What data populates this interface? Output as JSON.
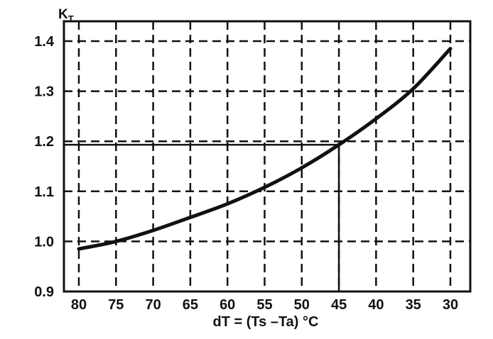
{
  "chart_data": {
    "type": "line",
    "title": "",
    "ylabel_main": "K",
    "ylabel_sub": "T",
    "xlabel": "dT = (Ts –Ta) °C",
    "x_ticks": [
      80,
      75,
      70,
      65,
      60,
      55,
      50,
      45,
      40,
      35,
      30
    ],
    "y_ticks": [
      "0.9",
      "1.0",
      "1.1",
      "1.2",
      "1.3",
      "1.4"
    ],
    "xlim": [
      80,
      30
    ],
    "ylim": [
      0.9,
      1.4
    ],
    "x_reversed": true,
    "grid": "dashed",
    "series": [
      {
        "x": [
          80,
          75,
          70,
          65,
          60,
          55,
          50,
          45,
          40,
          35,
          30
        ],
        "y": [
          0.985,
          1.0,
          1.022,
          1.048,
          1.075,
          1.108,
          1.147,
          1.193,
          1.245,
          1.305,
          1.385
        ]
      }
    ],
    "reference_lines": {
      "x": 45,
      "y": 1.193
    }
  }
}
